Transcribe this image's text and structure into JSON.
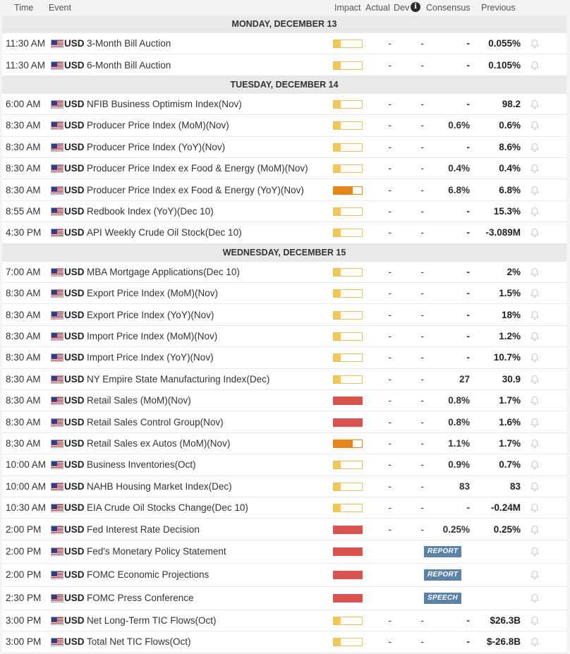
{
  "header": {
    "time": "Time",
    "event": "Event",
    "impact": "Impact",
    "actual": "Actual",
    "dev": "Dev",
    "info_icon": "info-icon",
    "consensus": "Consensus",
    "previous": "Previous"
  },
  "colors": {
    "low_impact": "#f5c856",
    "medium_impact": "#e6861a",
    "high_impact": "#d9534f",
    "badge": "#5b83a8"
  },
  "days": [
    {
      "label": "MONDAY, DECEMBER 13",
      "events": [
        {
          "time": "11:30 AM",
          "currency": "USD",
          "event": "3-Month Bill Auction",
          "impact": "low",
          "actual": "-",
          "dev": "-",
          "consensus": "-",
          "previous": "0.055%"
        },
        {
          "time": "11:30 AM",
          "currency": "USD",
          "event": "6-Month Bill Auction",
          "impact": "low",
          "actual": "-",
          "dev": "-",
          "consensus": "-",
          "previous": "0.105%"
        }
      ]
    },
    {
      "label": "TUESDAY, DECEMBER 14",
      "events": [
        {
          "time": "6:00 AM",
          "currency": "USD",
          "event": "NFIB Business Optimism Index(Nov)",
          "impact": "low",
          "actual": "-",
          "dev": "-",
          "consensus": "-",
          "previous": "98.2"
        },
        {
          "time": "8:30 AM",
          "currency": "USD",
          "event": "Producer Price Index (MoM)(Nov)",
          "impact": "low",
          "actual": "-",
          "dev": "-",
          "consensus": "0.6%",
          "previous": "0.6%"
        },
        {
          "time": "8:30 AM",
          "currency": "USD",
          "event": "Producer Price Index (YoY)(Nov)",
          "impact": "low",
          "actual": "-",
          "dev": "-",
          "consensus": "-",
          "previous": "8.6%"
        },
        {
          "time": "8:30 AM",
          "currency": "USD",
          "event": "Producer Price Index ex Food & Energy (MoM)(Nov)",
          "impact": "low",
          "actual": "-",
          "dev": "-",
          "consensus": "0.4%",
          "previous": "0.4%"
        },
        {
          "time": "8:30 AM",
          "currency": "USD",
          "event": "Producer Price Index ex Food & Energy (YoY)(Nov)",
          "impact": "medium",
          "actual": "-",
          "dev": "-",
          "consensus": "6.8%",
          "previous": "6.8%"
        },
        {
          "time": "8:55 AM",
          "currency": "USD",
          "event": "Redbook Index (YoY)(Dec 10)",
          "impact": "low",
          "actual": "-",
          "dev": "-",
          "consensus": "-",
          "previous": "15.3%"
        },
        {
          "time": "4:30 PM",
          "currency": "USD",
          "event": "API Weekly Crude Oil Stock(Dec 10)",
          "impact": "low",
          "actual": "-",
          "dev": "-",
          "consensus": "-",
          "previous": "-3.089M"
        }
      ]
    },
    {
      "label": "WEDNESDAY, DECEMBER 15",
      "events": [
        {
          "time": "7:00 AM",
          "currency": "USD",
          "event": "MBA Mortgage Applications(Dec 10)",
          "impact": "low",
          "actual": "-",
          "dev": "-",
          "consensus": "-",
          "previous": "2%"
        },
        {
          "time": "8:30 AM",
          "currency": "USD",
          "event": "Export Price Index (MoM)(Nov)",
          "impact": "low",
          "actual": "-",
          "dev": "-",
          "consensus": "-",
          "previous": "1.5%"
        },
        {
          "time": "8:30 AM",
          "currency": "USD",
          "event": "Export Price Index (YoY)(Nov)",
          "impact": "low",
          "actual": "-",
          "dev": "-",
          "consensus": "-",
          "previous": "18%"
        },
        {
          "time": "8:30 AM",
          "currency": "USD",
          "event": "Import Price Index (MoM)(Nov)",
          "impact": "low",
          "actual": "-",
          "dev": "-",
          "consensus": "-",
          "previous": "1.2%"
        },
        {
          "time": "8:30 AM",
          "currency": "USD",
          "event": "Import Price Index (YoY)(Nov)",
          "impact": "low",
          "actual": "-",
          "dev": "-",
          "consensus": "-",
          "previous": "10.7%"
        },
        {
          "time": "8:30 AM",
          "currency": "USD",
          "event": "NY Empire State Manufacturing Index(Dec)",
          "impact": "low",
          "actual": "-",
          "dev": "-",
          "consensus": "27",
          "previous": "30.9"
        },
        {
          "time": "8:30 AM",
          "currency": "USD",
          "event": "Retail Sales (MoM)(Nov)",
          "impact": "high",
          "actual": "-",
          "dev": "-",
          "consensus": "0.8%",
          "previous": "1.7%"
        },
        {
          "time": "8:30 AM",
          "currency": "USD",
          "event": "Retail Sales Control Group(Nov)",
          "impact": "high",
          "actual": "-",
          "dev": "-",
          "consensus": "0.8%",
          "previous": "1.6%"
        },
        {
          "time": "8:30 AM",
          "currency": "USD",
          "event": "Retail Sales ex Autos (MoM)(Nov)",
          "impact": "medium",
          "actual": "-",
          "dev": "-",
          "consensus": "1.1%",
          "previous": "1.7%"
        },
        {
          "time": "10:00 AM",
          "currency": "USD",
          "event": "Business Inventories(Oct)",
          "impact": "low",
          "actual": "-",
          "dev": "-",
          "consensus": "0.9%",
          "previous": "0.7%"
        },
        {
          "time": "10:00 AM",
          "currency": "USD",
          "event": "NAHB Housing Market Index(Dec)",
          "impact": "low",
          "actual": "-",
          "dev": "-",
          "consensus": "83",
          "previous": "83"
        },
        {
          "time": "10:30 AM",
          "currency": "USD",
          "event": "EIA Crude Oil Stocks Change(Dec 10)",
          "impact": "low",
          "actual": "-",
          "dev": "-",
          "consensus": "-",
          "previous": "-0.24M"
        },
        {
          "time": "2:00 PM",
          "currency": "USD",
          "event": "Fed Interest Rate Decision",
          "impact": "high",
          "actual": "-",
          "dev": "-",
          "consensus": "0.25%",
          "previous": "0.25%"
        },
        {
          "time": "2:00 PM",
          "currency": "USD",
          "event": "Fed's Monetary Policy Statement",
          "impact": "high",
          "badge": "REPORT"
        },
        {
          "time": "2:00 PM",
          "currency": "USD",
          "event": "FOMC Economic Projections",
          "impact": "high",
          "badge": "REPORT"
        },
        {
          "time": "2:30 PM",
          "currency": "USD",
          "event": "FOMC Press Conference",
          "impact": "high",
          "badge": "SPEECH"
        },
        {
          "time": "3:00 PM",
          "currency": "USD",
          "event": "Net Long-Term TIC Flows(Oct)",
          "impact": "low",
          "actual": "-",
          "dev": "-",
          "consensus": "-",
          "previous": "$26.3B"
        },
        {
          "time": "3:00 PM",
          "currency": "USD",
          "event": "Total Net TIC Flows(Oct)",
          "impact": "low",
          "actual": "-",
          "dev": "-",
          "consensus": "-",
          "previous": "$-26.8B"
        }
      ]
    }
  ]
}
